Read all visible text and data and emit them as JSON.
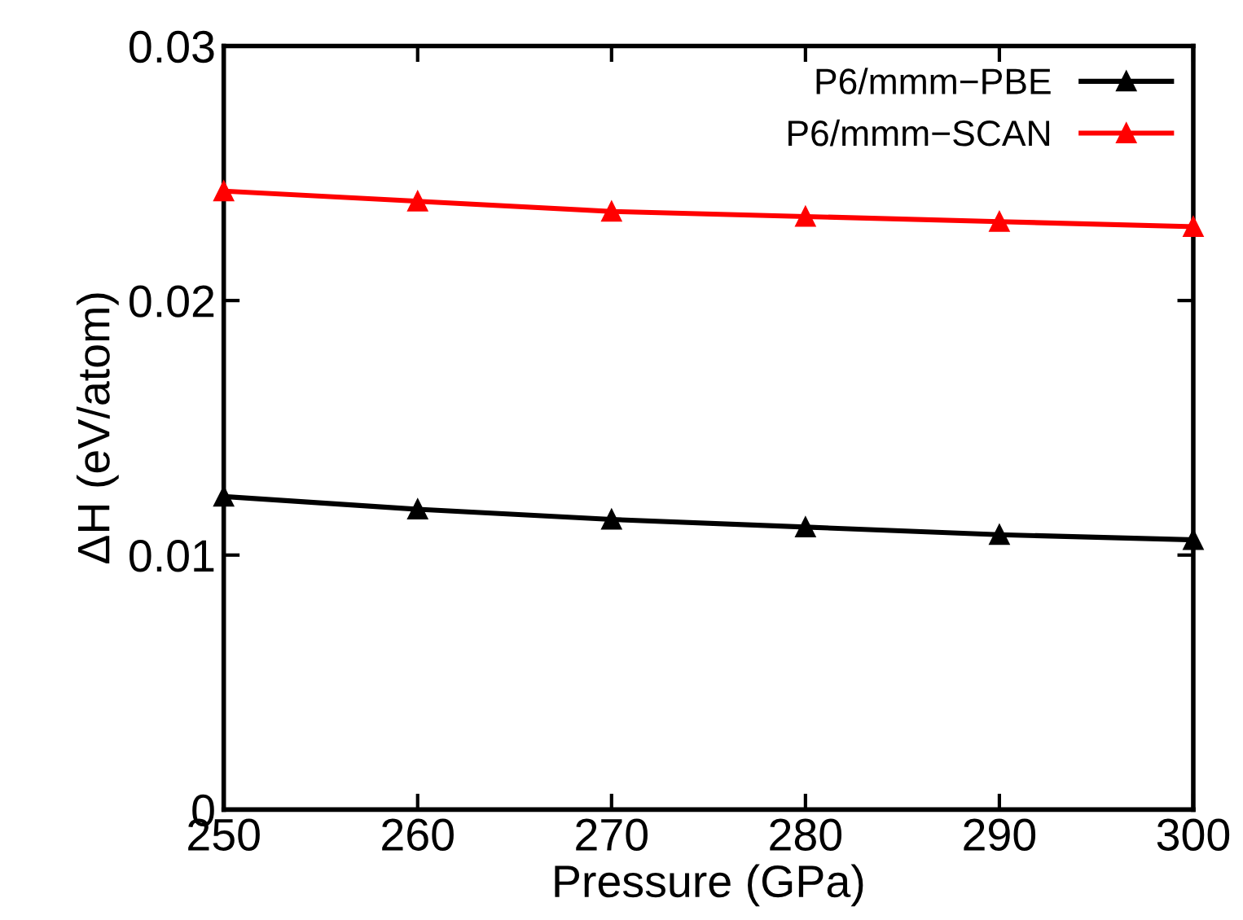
{
  "chart_data": {
    "type": "line",
    "xlabel": "Pressure (GPa)",
    "ylabel": "ΔH (eV/atom)",
    "x": [
      250,
      260,
      270,
      280,
      290,
      300
    ],
    "series": [
      {
        "name": "P6/mmm−PBE",
        "color": "#000000",
        "values": [
          0.0123,
          0.0118,
          0.0114,
          0.0111,
          0.0108,
          0.0106
        ]
      },
      {
        "name": "P6/mmm−SCAN",
        "color": "#ff0000",
        "values": [
          0.0243,
          0.0239,
          0.0235,
          0.0233,
          0.0231,
          0.0229
        ]
      }
    ],
    "xlim": [
      250,
      300
    ],
    "xticks": [
      250,
      260,
      270,
      280,
      290,
      300
    ],
    "ylim": [
      0,
      0.03
    ],
    "yticks": [
      0,
      0.01,
      0.02,
      0.03
    ],
    "marker": "triangle",
    "line_style": "solid",
    "legend": "top right",
    "grid": false
  }
}
